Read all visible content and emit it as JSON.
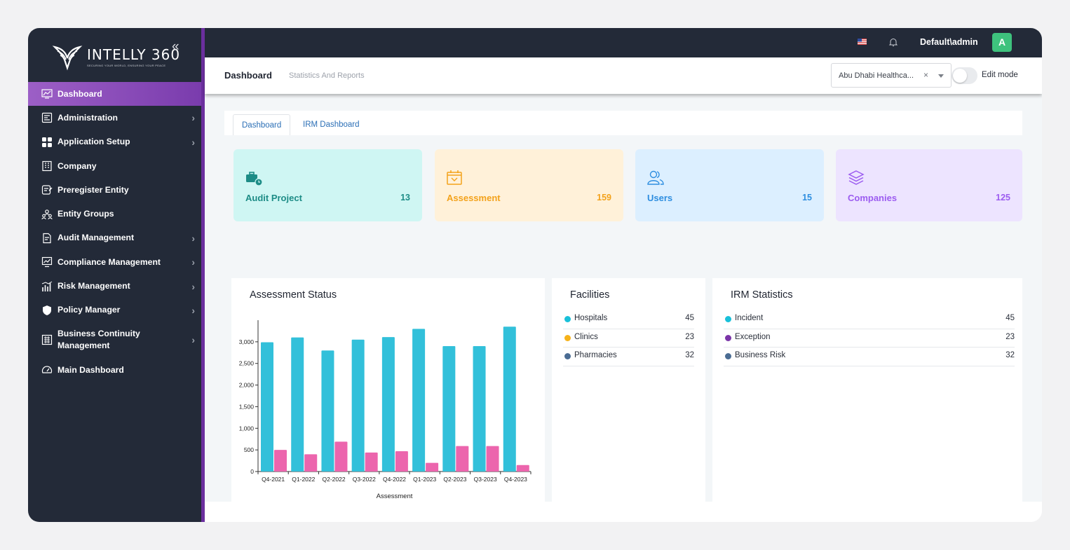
{
  "brand": {
    "name": "INTELLY 360",
    "tagline": "SECURING YOUR WORLD, ENSURING YOUR PEACE"
  },
  "sidebar": {
    "items": [
      {
        "label": "Dashboard",
        "icon": "chart-monitor-icon",
        "active": true,
        "has_submenu": false
      },
      {
        "label": "Administration",
        "icon": "admin-panel-icon",
        "has_submenu": true
      },
      {
        "label": "Application Setup",
        "icon": "grid-icon",
        "has_submenu": true
      },
      {
        "label": "Company",
        "icon": "building-icon",
        "has_submenu": false
      },
      {
        "label": "Preregister Entity",
        "icon": "register-icon",
        "has_submenu": false
      },
      {
        "label": "Entity Groups",
        "icon": "group-icon",
        "has_submenu": false
      },
      {
        "label": "Audit Management",
        "icon": "audit-document-icon",
        "has_submenu": true
      },
      {
        "label": "Compliance Management",
        "icon": "compliance-chart-icon",
        "has_submenu": true
      },
      {
        "label": "Risk Management",
        "icon": "risk-bars-icon",
        "has_submenu": true
      },
      {
        "label": "Policy Manager",
        "icon": "shield-icon",
        "has_submenu": true
      },
      {
        "label": "Business Continuity Management",
        "icon": "continuity-icon",
        "has_submenu": true
      },
      {
        "label": "Main Dashboard",
        "icon": "gauge-icon",
        "has_submenu": false
      }
    ]
  },
  "topbar": {
    "user": "Default\\admin",
    "avatar_letter": "A",
    "flag_icon": "us-flag-icon",
    "bell_icon": "bell-icon"
  },
  "header": {
    "title": "Dashboard",
    "subtitle": "Statistics And Reports",
    "company_select": {
      "value": "Abu Dhabi Healthca...",
      "clear": "×"
    },
    "edit_mode": {
      "label": "Edit mode",
      "enabled": false
    }
  },
  "tabs": [
    {
      "label": "Dashboard",
      "active": true
    },
    {
      "label": "IRM Dashboard",
      "active": false
    }
  ],
  "stats": [
    {
      "label": "Audit Project",
      "value": "13",
      "bg": "#cff6f3",
      "color": "#1d8c86",
      "icon": "briefcase-clock-icon"
    },
    {
      "label": "Assessment",
      "value": "159",
      "bg": "#fff1d9",
      "color": "#f3a21b",
      "icon": "calendar-badge-icon"
    },
    {
      "label": "Users",
      "value": "15",
      "bg": "#dcefff",
      "color": "#2e8ee0",
      "icon": "users-icon"
    },
    {
      "label": "Companies",
      "value": "125",
      "bg": "#ede4ff",
      "color": "#9c5cf0",
      "icon": "layers-icon"
    }
  ],
  "assessment_panel": {
    "title": "Assessment Status"
  },
  "facilities": {
    "title": "Facilities",
    "items": [
      {
        "name": "Hospitals",
        "value": "45",
        "color": "#19c0d9"
      },
      {
        "name": "Clinics",
        "value": "23",
        "color": "#f6b21a"
      },
      {
        "name": "Pharmacies",
        "value": "32",
        "color": "#4a6c93"
      }
    ]
  },
  "irm": {
    "title": "IRM Statistics",
    "items": [
      {
        "name": "Incident",
        "value": "45",
        "color": "#19c0d9"
      },
      {
        "name": "Exception",
        "value": "23",
        "color": "#7b35a8"
      },
      {
        "name": "Business Risk",
        "value": "32",
        "color": "#4a6c93"
      }
    ]
  },
  "chart_data": {
    "type": "bar",
    "categories": [
      "Q4-2021",
      "Q1-2022",
      "Q2-2022",
      "Q3-2022",
      "Q4-2022",
      "Q1-2023",
      "Q2-2023",
      "Q3-2023",
      "Q4-2023"
    ],
    "series": [
      {
        "values": [
          2990,
          3100,
          2800,
          3050,
          3110,
          3300,
          2900,
          2900,
          3350
        ],
        "color": "#32c0da"
      },
      {
        "values": [
          500,
          400,
          690,
          440,
          470,
          200,
          590,
          590,
          150
        ],
        "color": "#ec65ad"
      }
    ],
    "xlabel": "Assessment",
    "ylabel": "",
    "ylim": [
      0,
      3500
    ],
    "yticks": [
      0,
      500,
      1000,
      1500,
      2000,
      2500,
      3000
    ],
    "ytick_labels": [
      "0",
      "500",
      "1,000",
      "1,500",
      "2,000",
      "2,500",
      "3,000"
    ],
    "grid": false
  }
}
